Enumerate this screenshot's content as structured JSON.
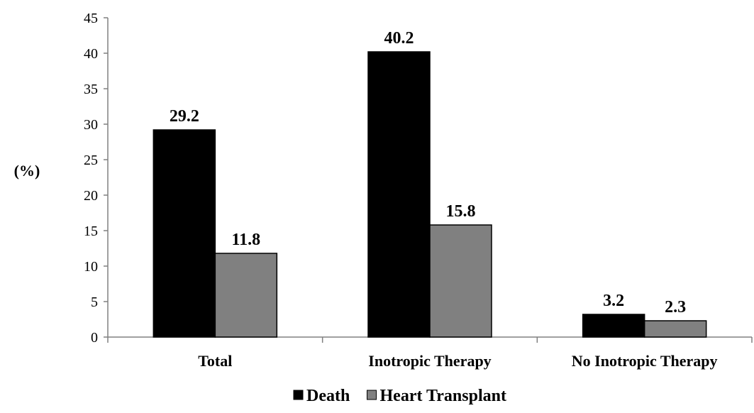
{
  "chart_data": {
    "type": "bar",
    "title": "",
    "xlabel": "",
    "ylabel": "(%)",
    "ylim": [
      0,
      45
    ],
    "yticks": [
      0,
      5,
      10,
      15,
      20,
      25,
      30,
      35,
      40,
      45
    ],
    "grid": false,
    "legend_position": "bottom-center",
    "categories": [
      "Total",
      "Inotropic Therapy",
      "No Inotropic Therapy"
    ],
    "series": [
      {
        "name": "Death",
        "color": "#000000",
        "values": [
          29.2,
          40.2,
          3.2
        ]
      },
      {
        "name": "Heart Transplant",
        "color": "#808080",
        "values": [
          11.8,
          15.8,
          2.3
        ]
      }
    ]
  }
}
